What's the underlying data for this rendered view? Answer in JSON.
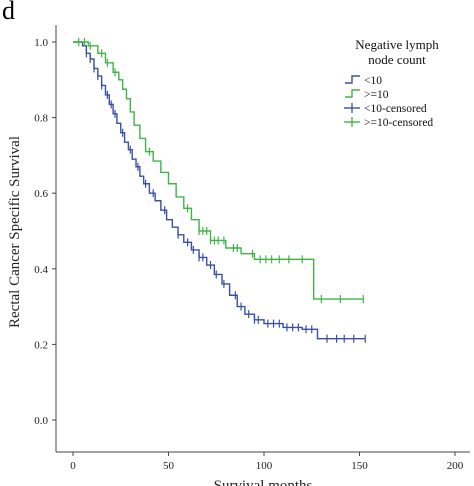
{
  "panel_label": "d",
  "colors": {
    "less_than_10": "#3a4fa8",
    "greater_equal_10": "#3fb548",
    "axis": "#444444"
  },
  "chart_data": {
    "type": "line",
    "step": true,
    "ylabel": "Rectal Cancer Specific Survival",
    "xlabel": "Survival months",
    "xlim": [
      0,
      200
    ],
    "ylim": [
      0.0,
      1.0
    ],
    "x_ticks": [
      0,
      50,
      100,
      150,
      200
    ],
    "y_ticks": [
      0.0,
      0.2,
      0.4,
      0.6,
      0.8,
      1.0
    ],
    "x_tick_labels": [
      "0",
      "50",
      "100",
      "150",
      "200"
    ],
    "y_tick_labels": [
      "0.0",
      "0.2",
      "0.4",
      "0.6",
      "0.8",
      "1.0"
    ],
    "legend": {
      "title_line1": "Negative lymph",
      "title_line2": "node count",
      "position": "top-right",
      "entries": [
        "<10",
        ">=10",
        "<10-censored",
        ">=10-censored"
      ]
    },
    "series": [
      {
        "name": "<10",
        "color": "#3a4fa8",
        "points": [
          [
            0,
            1.0
          ],
          [
            5,
            0.99
          ],
          [
            7,
            0.97
          ],
          [
            9,
            0.955
          ],
          [
            11,
            0.93
          ],
          [
            13,
            0.91
          ],
          [
            15,
            0.885
          ],
          [
            17,
            0.86
          ],
          [
            19,
            0.835
          ],
          [
            21,
            0.81
          ],
          [
            23,
            0.785
          ],
          [
            25,
            0.76
          ],
          [
            27,
            0.735
          ],
          [
            29,
            0.715
          ],
          [
            31,
            0.69
          ],
          [
            33,
            0.67
          ],
          [
            35,
            0.645
          ],
          [
            37,
            0.625
          ],
          [
            40,
            0.6
          ],
          [
            43,
            0.58
          ],
          [
            46,
            0.555
          ],
          [
            49,
            0.53
          ],
          [
            52,
            0.51
          ],
          [
            55,
            0.49
          ],
          [
            58,
            0.47
          ],
          [
            62,
            0.45
          ],
          [
            66,
            0.43
          ],
          [
            70,
            0.41
          ],
          [
            74,
            0.385
          ],
          [
            78,
            0.36
          ],
          [
            82,
            0.33
          ],
          [
            86,
            0.3
          ],
          [
            90,
            0.28
          ],
          [
            95,
            0.265
          ],
          [
            100,
            0.255
          ],
          [
            110,
            0.245
          ],
          [
            120,
            0.24
          ],
          [
            128,
            0.215
          ],
          [
            153,
            0.215
          ]
        ],
        "censored": [
          7,
          9,
          11,
          13,
          15,
          18,
          20,
          22,
          26,
          30,
          34,
          38,
          42,
          48,
          55,
          60,
          63,
          66,
          68,
          72,
          75,
          79,
          85,
          88,
          92,
          95,
          97,
          102,
          105,
          108,
          112,
          115,
          118,
          122,
          125,
          133,
          138,
          142,
          147,
          153
        ]
      },
      {
        "name": ">=10",
        "color": "#3fb548",
        "points": [
          [
            0,
            1.0
          ],
          [
            8,
            0.99
          ],
          [
            13,
            0.97
          ],
          [
            17,
            0.945
          ],
          [
            21,
            0.92
          ],
          [
            24,
            0.9
          ],
          [
            26,
            0.875
          ],
          [
            28,
            0.85
          ],
          [
            30,
            0.815
          ],
          [
            32,
            0.78
          ],
          [
            35,
            0.745
          ],
          [
            38,
            0.71
          ],
          [
            42,
            0.685
          ],
          [
            46,
            0.655
          ],
          [
            50,
            0.625
          ],
          [
            54,
            0.59
          ],
          [
            58,
            0.56
          ],
          [
            62,
            0.53
          ],
          [
            66,
            0.5
          ],
          [
            72,
            0.475
          ],
          [
            80,
            0.455
          ],
          [
            88,
            0.44
          ],
          [
            95,
            0.425
          ],
          [
            126,
            0.32
          ],
          [
            152,
            0.32
          ]
        ],
        "censored": [
          3,
          6,
          9,
          15,
          18,
          22,
          40,
          60,
          66,
          68,
          70,
          72,
          74,
          76,
          79,
          84,
          86,
          94,
          98,
          101,
          104,
          108,
          113,
          120,
          130,
          140,
          152
        ]
      }
    ]
  }
}
